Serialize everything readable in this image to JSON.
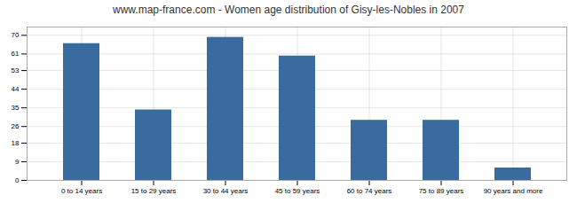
{
  "chart_data": {
    "type": "bar",
    "title": "www.map-france.com - Women age distribution of Gisy-les-Nobles in 2007",
    "categories": [
      "0 to 14 years",
      "15 to 29 years",
      "30 to 44 years",
      "45 to 59 years",
      "60 to 74 years",
      "75 to 89 years",
      "90 years and more"
    ],
    "values": [
      66,
      34,
      69,
      60,
      29,
      29,
      6
    ],
    "color": "#3a6b9e",
    "ylim": [
      0,
      74
    ],
    "yticks": [
      0,
      9,
      18,
      26,
      35,
      44,
      53,
      61,
      70
    ],
    "grid": true
  }
}
